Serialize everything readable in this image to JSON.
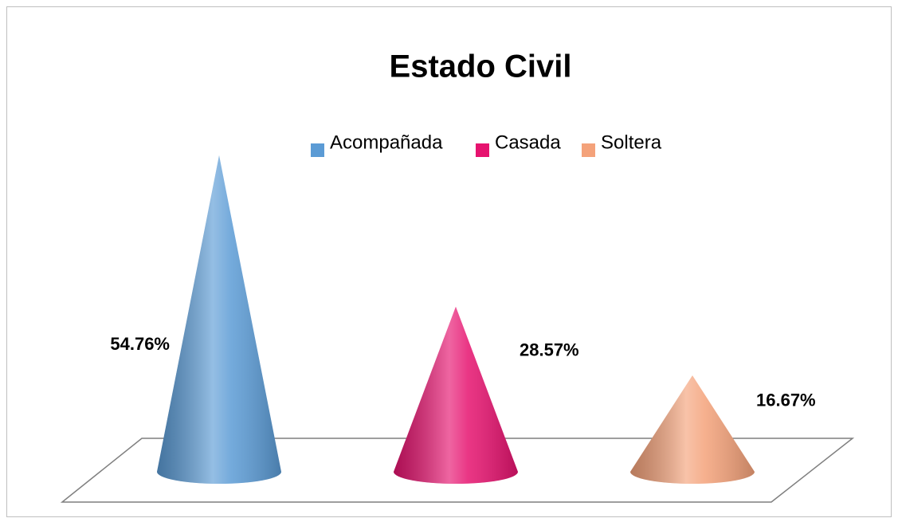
{
  "chart_data": {
    "type": "cone",
    "title": "Estado Civil",
    "series": [
      {
        "name": "Acompañada",
        "color": "#5b9bd5",
        "values": [
          54.76
        ],
        "value_labels": [
          "54.76%"
        ]
      },
      {
        "name": "Casada",
        "color": "#e6136f",
        "values": [
          28.57
        ],
        "value_labels": [
          "28.57%"
        ]
      },
      {
        "name": "Soltera",
        "color": "#f4a27a",
        "values": [
          16.67
        ],
        "value_labels": [
          "16.67%"
        ]
      }
    ]
  }
}
